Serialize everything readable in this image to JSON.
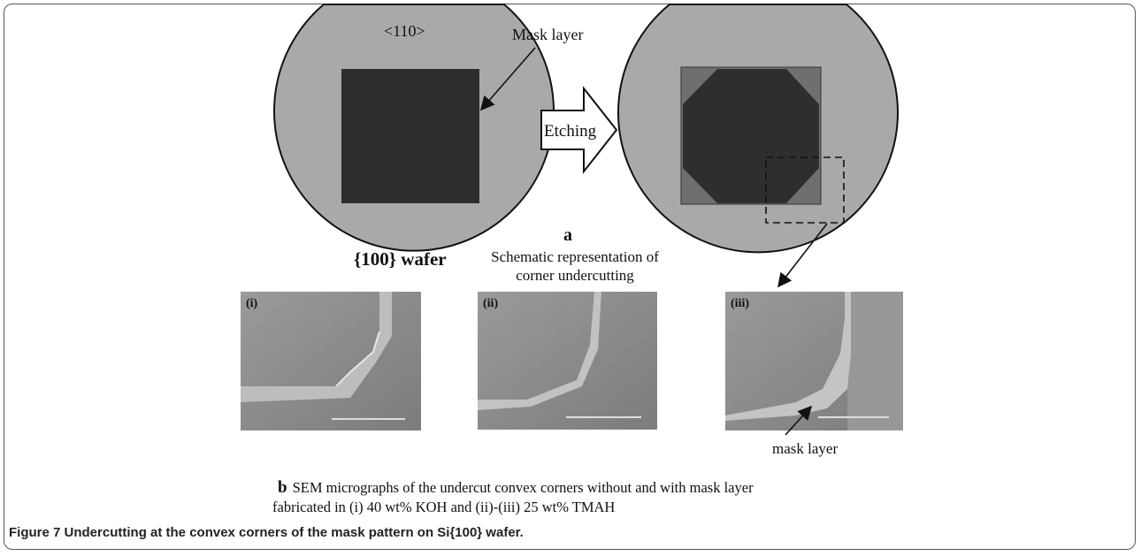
{
  "diagram": {
    "orientation_label": "<110>",
    "mask_label": "Mask layer",
    "wafer_label": "{100} wafer",
    "arrow_label": "Etching",
    "panel_a_letter": "a",
    "panel_a_caption_1": "Schematic representation of",
    "panel_a_caption_2": "corner undercutting",
    "sem_labels": [
      "(i)",
      "(ii)",
      "(iii)"
    ],
    "mask_annotation": "mask layer"
  },
  "panel_b": {
    "letter": "b",
    "line1": "SEM micrographs of the undercut convex corners without and with mask layer",
    "line2": "fabricated in (i) 40 wt% KOH and (ii)-(iii) 25 wt% TMAH"
  },
  "figure_caption": {
    "label": "Figure 7",
    "text": " Undercutting at the convex corners of the mask pattern on Si{100} wafer."
  },
  "colors": {
    "wafer": "#a9a9a9",
    "mask": "#2e2e2e",
    "sem_bg": "#8a8a8a"
  }
}
